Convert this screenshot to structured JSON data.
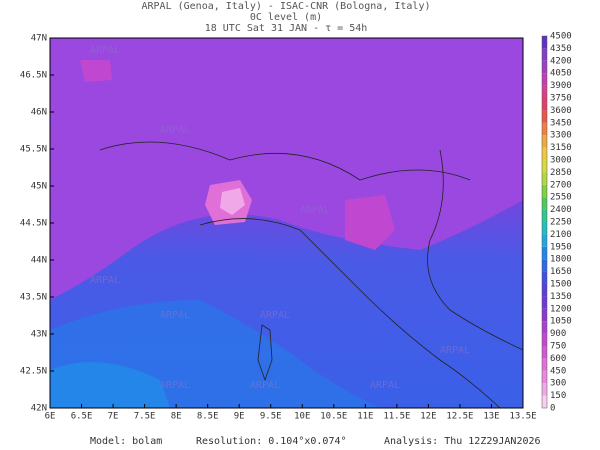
{
  "header": {
    "line1": "ARPAL (Genoa, Italy)  -  ISAC-CNR (Bologna, Italy)",
    "line2": "0C level (m)",
    "line3": "18 UTC Sat 31 JAN  -  τ = 54h"
  },
  "map": {
    "lon_labels": [
      "6E",
      "6.5E",
      "7E",
      "7.5E",
      "8E",
      "8.5E",
      "9E",
      "9.5E",
      "10E",
      "10.5E",
      "11E",
      "11.5E",
      "12E",
      "12.5E",
      "13E",
      "13.5E"
    ],
    "lat_labels": [
      "42N",
      "42.5N",
      "43N",
      "43.5N",
      "44N",
      "44.5N",
      "45N",
      "45.5N",
      "46N",
      "46.5N",
      "47N"
    ],
    "watermark": "ARPAL"
  },
  "colorbar": {
    "labels": [
      0,
      150,
      300,
      450,
      600,
      750,
      900,
      1050,
      1200,
      1350,
      1500,
      1650,
      1800,
      1950,
      2100,
      2250,
      2400,
      2550,
      2700,
      2850,
      3000,
      3150,
      3300,
      3450,
      3600,
      3750,
      3900,
      4050,
      4200,
      4350,
      4500
    ],
    "colors": [
      "#f7d0f0",
      "#f0a8e8",
      "#e888e0",
      "#e070d8",
      "#d058d0",
      "#c048d0",
      "#a840d0",
      "#8c38d0",
      "#7038d8",
      "#5840d8",
      "#4050e0",
      "#3068e8",
      "#2088e8",
      "#20a8e0",
      "#20c0c0",
      "#30c890",
      "#50c860",
      "#80d040",
      "#b0d840",
      "#d8d840",
      "#f0c840",
      "#f0a840",
      "#f08040",
      "#e85848",
      "#e04068",
      "#d84090",
      "#c040b0",
      "#a040c0",
      "#8040c8",
      "#6030c0"
    ]
  },
  "footer": {
    "model": "Model: bolam",
    "resolution": "Resolution: 0.104°x0.074°",
    "analysis": "Analysis: Thu 12Z29JAN2026"
  }
}
